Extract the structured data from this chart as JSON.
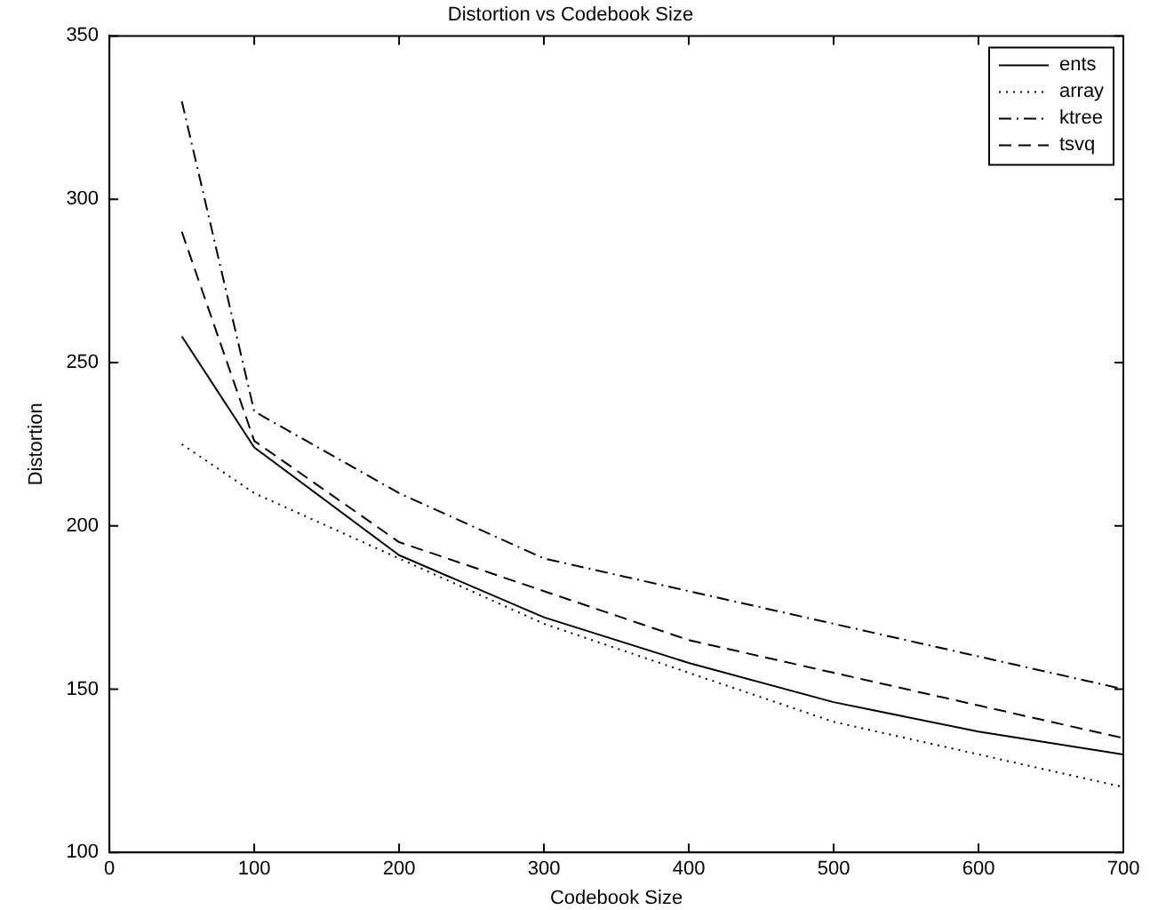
{
  "chart_data": {
    "type": "line",
    "title": "Distortion vs Codebook Size",
    "xlabel": "Codebook Size",
    "ylabel": "Distortion",
    "x": [
      50,
      100,
      200,
      300,
      400,
      500,
      600,
      700
    ],
    "series": [
      {
        "name": "ents",
        "color": "#000000",
        "line_style": "solid",
        "values": [
          258,
          224,
          191,
          172,
          158,
          146,
          137,
          130
        ]
      },
      {
        "name": "array",
        "color": "#000000",
        "line_style": "dotted",
        "values": [
          225,
          210,
          190,
          170,
          155,
          140,
          130,
          120
        ]
      },
      {
        "name": "ktree",
        "color": "#000000",
        "line_style": "dashdot",
        "values": [
          330,
          235,
          210,
          190,
          180,
          170,
          160,
          150
        ]
      },
      {
        "name": "tsvq",
        "color": "#000000",
        "line_style": "dashed",
        "values": [
          290,
          226,
          195,
          180,
          165,
          155,
          145,
          135
        ]
      }
    ],
    "xlim": [
      0,
      700
    ],
    "xticks": [
      0,
      100,
      200,
      300,
      400,
      500,
      600,
      700
    ],
    "ylim": [
      100,
      350
    ],
    "yticks": [
      100,
      150,
      200,
      250,
      300,
      350
    ],
    "legend": "top right",
    "marker": "none",
    "grid": false
  }
}
